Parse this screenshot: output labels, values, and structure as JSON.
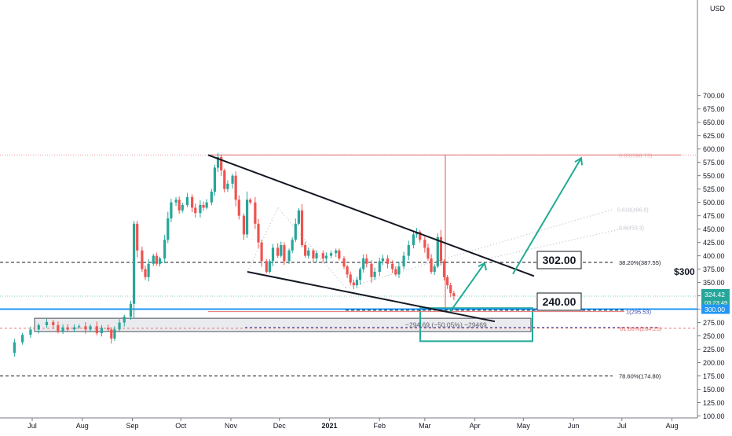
{
  "chart_data": {
    "type": "candlestick",
    "currency": "USD",
    "y_ticks": [
      100,
      125,
      150,
      175,
      200,
      225,
      250,
      275,
      300,
      325,
      350,
      375,
      400,
      425,
      450,
      475,
      500,
      525,
      550,
      575,
      600,
      625,
      650,
      675,
      700
    ],
    "x_ticks": [
      "Jul",
      "Aug",
      "Sep",
      "Oct",
      "Nov",
      "Dec",
      "2021",
      "Feb",
      "Mar",
      "Apr",
      "May",
      "Jun",
      "Jul",
      "Aug"
    ],
    "ylim": [
      96,
      712
    ],
    "last_price": "324.42",
    "countdown": "03:23:49",
    "support_level": "300.00",
    "support_text": "$300",
    "targets": [
      "302.00",
      "240.00"
    ],
    "measure_label": "−294.69 (−50.05%) −29469",
    "fib_levels": [
      {
        "label": "0.00(588.73)",
        "value": 588.73
      },
      {
        "label": "38.20%(387.55)",
        "value": 387.55
      },
      {
        "label": "1(295.53)",
        "value": 295.53
      },
      {
        "label": "61.80%(264.25)",
        "value": 264.25
      },
      {
        "label": "78.60%(174.80)",
        "value": 174.8
      }
    ],
    "fib_faint": [
      {
        "label": "0.618(486.8)",
        "value": 486.8
      },
      {
        "label": "0.5(453.3)",
        "value": 453.3
      }
    ],
    "close_points": [
      [
        "2020-06-15",
        218
      ],
      [
        "2020-06-20",
        238
      ],
      [
        "2020-06-25",
        252
      ],
      [
        "2020-06-30",
        262
      ],
      [
        "2020-07-05",
        270
      ],
      [
        "2020-07-10",
        276
      ],
      [
        "2020-07-14",
        270
      ],
      [
        "2020-07-17",
        258
      ],
      [
        "2020-07-20",
        266
      ],
      [
        "2020-07-23",
        262
      ],
      [
        "2020-07-27",
        266
      ],
      [
        "2020-07-30",
        268
      ],
      [
        "2020-08-03",
        262
      ],
      [
        "2020-08-06",
        268
      ],
      [
        "2020-08-10",
        255
      ],
      [
        "2020-08-13",
        265
      ],
      [
        "2020-08-17",
        262
      ],
      [
        "2020-08-19",
        245
      ],
      [
        "2020-08-21",
        262
      ],
      [
        "2020-08-24",
        275
      ],
      [
        "2020-08-27",
        286
      ],
      [
        "2020-08-31",
        310
      ],
      [
        "2020-09-02",
        460
      ],
      [
        "2020-09-04",
        410
      ],
      [
        "2020-09-07",
        375
      ],
      [
        "2020-09-09",
        360
      ],
      [
        "2020-09-11",
        385
      ],
      [
        "2020-09-14",
        400
      ],
      [
        "2020-09-16",
        385
      ],
      [
        "2020-09-18",
        395
      ],
      [
        "2020-09-21",
        430
      ],
      [
        "2020-09-23",
        470
      ],
      [
        "2020-09-25",
        500
      ],
      [
        "2020-09-28",
        505
      ],
      [
        "2020-09-30",
        485
      ],
      [
        "2020-10-02",
        495
      ],
      [
        "2020-10-05",
        510
      ],
      [
        "2020-10-08",
        490
      ],
      [
        "2020-10-10",
        480
      ],
      [
        "2020-10-13",
        495
      ],
      [
        "2020-10-15",
        490
      ],
      [
        "2020-10-17",
        500
      ],
      [
        "2020-10-20",
        520
      ],
      [
        "2020-10-22",
        565
      ],
      [
        "2020-10-24",
        585
      ],
      [
        "2020-10-26",
        560
      ],
      [
        "2020-10-28",
        525
      ],
      [
        "2020-10-30",
        535
      ],
      [
        "2020-11-02",
        550
      ],
      [
        "2020-11-04",
        505
      ],
      [
        "2020-11-06",
        475
      ],
      [
        "2020-11-09",
        440
      ],
      [
        "2020-11-11",
        505
      ],
      [
        "2020-11-13",
        500
      ],
      [
        "2020-11-16",
        460
      ],
      [
        "2020-11-18",
        425
      ],
      [
        "2020-11-20",
        390
      ],
      [
        "2020-11-23",
        370
      ],
      [
        "2020-11-25",
        390
      ],
      [
        "2020-11-27",
        415
      ],
      [
        "2020-11-30",
        400
      ],
      [
        "2020-12-02",
        420
      ],
      [
        "2020-12-04",
        390
      ],
      [
        "2020-12-07",
        410
      ],
      [
        "2020-12-09",
        430
      ],
      [
        "2020-12-11",
        460
      ],
      [
        "2020-12-13",
        485
      ],
      [
        "2020-12-15",
        420
      ],
      [
        "2020-12-17",
        400
      ],
      [
        "2020-12-19",
        410
      ],
      [
        "2020-12-22",
        395
      ],
      [
        "2020-12-24",
        405
      ],
      [
        "2020-12-28",
        395
      ],
      [
        "2020-12-30",
        400
      ],
      [
        "2021-01-02",
        405
      ],
      [
        "2021-01-05",
        410
      ],
      [
        "2021-01-07",
        395
      ],
      [
        "2021-01-10",
        380
      ],
      [
        "2021-01-12",
        365
      ],
      [
        "2021-01-14",
        350
      ],
      [
        "2021-01-16",
        345
      ],
      [
        "2021-01-18",
        355
      ],
      [
        "2021-01-20",
        375
      ],
      [
        "2021-01-22",
        395
      ],
      [
        "2021-01-24",
        385
      ],
      [
        "2021-01-27",
        360
      ],
      [
        "2021-01-29",
        370
      ],
      [
        "2021-02-01",
        390
      ],
      [
        "2021-02-03",
        395
      ],
      [
        "2021-02-06",
        385
      ],
      [
        "2021-02-09",
        375
      ],
      [
        "2021-02-11",
        365
      ],
      [
        "2021-02-13",
        380
      ],
      [
        "2021-02-16",
        400
      ],
      [
        "2021-02-19",
        420
      ],
      [
        "2021-02-22",
        440
      ],
      [
        "2021-02-24",
        445
      ],
      [
        "2021-02-26",
        430
      ],
      [
        "2021-03-01",
        415
      ],
      [
        "2021-03-03",
        395
      ],
      [
        "2021-03-05",
        370
      ],
      [
        "2021-03-07",
        380
      ],
      [
        "2021-03-09",
        435
      ],
      [
        "2021-03-11",
        390
      ],
      [
        "2021-03-13",
        360
      ],
      [
        "2021-03-15",
        345
      ],
      [
        "2021-03-17",
        330
      ],
      [
        "2021-03-19",
        324.42
      ]
    ],
    "xlabel": "",
    "ylabel": ""
  }
}
